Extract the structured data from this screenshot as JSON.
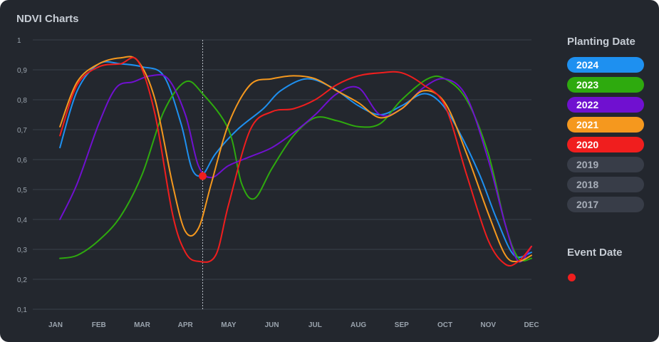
{
  "title": "NDVI Charts",
  "legend": {
    "title": "Planting Date",
    "items": [
      {
        "label": "2024",
        "color": "#1e90f0",
        "active": true
      },
      {
        "label": "2023",
        "color": "#2eaa0e",
        "active": true
      },
      {
        "label": "2022",
        "color": "#7010d0",
        "active": true
      },
      {
        "label": "2021",
        "color": "#f5981e",
        "active": true
      },
      {
        "label": "2020",
        "color": "#f01e1e",
        "active": true
      },
      {
        "label": "2019",
        "color": "#383d48",
        "active": false
      },
      {
        "label": "2018",
        "color": "#383d48",
        "active": false
      },
      {
        "label": "2017",
        "color": "#383d48",
        "active": false
      }
    ]
  },
  "event": {
    "title": "Event Date",
    "color": "#f01e1e"
  },
  "chart_data": {
    "type": "line",
    "title": "NDVI Charts",
    "x_labels": [
      "JAN",
      "FEB",
      "MAR",
      "APR",
      "MAY",
      "JUN",
      "JUL",
      "AUG",
      "SEP",
      "OCT",
      "NOV",
      "DEC"
    ],
    "y_tick_labels": [
      "0,1",
      "0,2",
      "0,3",
      "0,4",
      "0,5",
      "0,6",
      "0,7",
      "0,8",
      "0,9",
      "1"
    ],
    "ylim": [
      0.1,
      1.0
    ],
    "xlim": [
      0,
      11
    ],
    "grid": true,
    "legend_position": "right",
    "event_marker": {
      "x": 3.4,
      "y": 0.545
    },
    "series": [
      {
        "name": "2024",
        "color": "#1e90f0",
        "points": [
          [
            0.1,
            0.64
          ],
          [
            0.5,
            0.83
          ],
          [
            1.0,
            0.92
          ],
          [
            1.5,
            0.92
          ],
          [
            2.0,
            0.91
          ],
          [
            2.5,
            0.88
          ],
          [
            2.9,
            0.72
          ],
          [
            3.15,
            0.57
          ],
          [
            3.4,
            0.55
          ],
          [
            3.7,
            0.62
          ],
          [
            4.2,
            0.7
          ],
          [
            4.8,
            0.77
          ],
          [
            5.2,
            0.83
          ],
          [
            5.8,
            0.87
          ],
          [
            6.4,
            0.84
          ],
          [
            7.0,
            0.78
          ],
          [
            7.5,
            0.75
          ],
          [
            8.0,
            0.78
          ],
          [
            8.5,
            0.82
          ],
          [
            8.9,
            0.79
          ],
          [
            9.3,
            0.7
          ],
          [
            9.8,
            0.55
          ],
          [
            10.2,
            0.4
          ],
          [
            10.6,
            0.28
          ],
          [
            11.0,
            0.29
          ]
        ]
      },
      {
        "name": "2023",
        "color": "#2eaa0e",
        "points": [
          [
            0.1,
            0.27
          ],
          [
            0.5,
            0.28
          ],
          [
            1.0,
            0.33
          ],
          [
            1.5,
            0.41
          ],
          [
            2.0,
            0.55
          ],
          [
            2.5,
            0.76
          ],
          [
            3.0,
            0.86
          ],
          [
            3.4,
            0.82
          ],
          [
            4.0,
            0.7
          ],
          [
            4.3,
            0.52
          ],
          [
            4.6,
            0.47
          ],
          [
            5.0,
            0.57
          ],
          [
            5.5,
            0.68
          ],
          [
            6.0,
            0.74
          ],
          [
            6.5,
            0.73
          ],
          [
            7.0,
            0.71
          ],
          [
            7.5,
            0.72
          ],
          [
            8.0,
            0.8
          ],
          [
            8.6,
            0.87
          ],
          [
            9.0,
            0.87
          ],
          [
            9.5,
            0.8
          ],
          [
            10.0,
            0.62
          ],
          [
            10.4,
            0.38
          ],
          [
            10.7,
            0.27
          ],
          [
            11.0,
            0.27
          ]
        ]
      },
      {
        "name": "2022",
        "color": "#7010d0",
        "points": [
          [
            0.1,
            0.4
          ],
          [
            0.5,
            0.52
          ],
          [
            1.0,
            0.72
          ],
          [
            1.4,
            0.84
          ],
          [
            1.8,
            0.86
          ],
          [
            2.2,
            0.88
          ],
          [
            2.6,
            0.87
          ],
          [
            3.0,
            0.75
          ],
          [
            3.3,
            0.58
          ],
          [
            3.6,
            0.54
          ],
          [
            4.0,
            0.58
          ],
          [
            4.5,
            0.61
          ],
          [
            5.0,
            0.64
          ],
          [
            5.5,
            0.69
          ],
          [
            6.0,
            0.75
          ],
          [
            6.5,
            0.82
          ],
          [
            7.0,
            0.84
          ],
          [
            7.5,
            0.75
          ],
          [
            8.0,
            0.77
          ],
          [
            8.5,
            0.84
          ],
          [
            9.0,
            0.87
          ],
          [
            9.5,
            0.81
          ],
          [
            10.0,
            0.6
          ],
          [
            10.4,
            0.38
          ],
          [
            10.7,
            0.26
          ],
          [
            11.0,
            0.31
          ]
        ]
      },
      {
        "name": "2021",
        "color": "#f5981e",
        "points": [
          [
            0.1,
            0.71
          ],
          [
            0.5,
            0.86
          ],
          [
            1.0,
            0.92
          ],
          [
            1.5,
            0.94
          ],
          [
            1.9,
            0.93
          ],
          [
            2.3,
            0.8
          ],
          [
            2.7,
            0.52
          ],
          [
            3.0,
            0.36
          ],
          [
            3.3,
            0.37
          ],
          [
            3.6,
            0.52
          ],
          [
            4.0,
            0.72
          ],
          [
            4.5,
            0.85
          ],
          [
            5.0,
            0.87
          ],
          [
            5.5,
            0.88
          ],
          [
            6.0,
            0.87
          ],
          [
            6.5,
            0.83
          ],
          [
            7.0,
            0.79
          ],
          [
            7.5,
            0.74
          ],
          [
            8.0,
            0.77
          ],
          [
            8.5,
            0.83
          ],
          [
            9.0,
            0.79
          ],
          [
            9.5,
            0.62
          ],
          [
            10.0,
            0.42
          ],
          [
            10.4,
            0.28
          ],
          [
            10.7,
            0.26
          ],
          [
            11.0,
            0.28
          ]
        ]
      },
      {
        "name": "2020",
        "color": "#f01e1e",
        "points": [
          [
            0.1,
            0.68
          ],
          [
            0.5,
            0.85
          ],
          [
            1.0,
            0.91
          ],
          [
            1.5,
            0.92
          ],
          [
            1.9,
            0.93
          ],
          [
            2.3,
            0.75
          ],
          [
            2.7,
            0.42
          ],
          [
            3.0,
            0.29
          ],
          [
            3.3,
            0.26
          ],
          [
            3.7,
            0.28
          ],
          [
            4.0,
            0.45
          ],
          [
            4.5,
            0.7
          ],
          [
            5.0,
            0.76
          ],
          [
            5.5,
            0.77
          ],
          [
            6.0,
            0.8
          ],
          [
            6.5,
            0.85
          ],
          [
            7.0,
            0.88
          ],
          [
            7.5,
            0.89
          ],
          [
            8.0,
            0.89
          ],
          [
            8.5,
            0.85
          ],
          [
            9.0,
            0.78
          ],
          [
            9.5,
            0.55
          ],
          [
            10.0,
            0.33
          ],
          [
            10.4,
            0.25
          ],
          [
            10.7,
            0.26
          ],
          [
            11.0,
            0.31
          ]
        ]
      }
    ]
  }
}
